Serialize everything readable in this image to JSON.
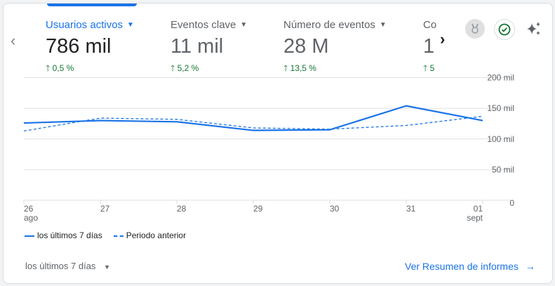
{
  "metrics": [
    {
      "label": "Usuarios activos",
      "value": "786 mil",
      "change": "0,5 %"
    },
    {
      "label": "Eventos clave",
      "value": "11 mil",
      "change": "5,2 %"
    },
    {
      "label": "Número de eventos",
      "value": "28 M",
      "change": "13,5 %"
    },
    {
      "label": "Co",
      "value": "1",
      "change": "5"
    }
  ],
  "icons": {
    "prev": "chevron-left-icon",
    "next": "chevron-right-icon",
    "badge": "medal-icon",
    "check": "check-circle-icon",
    "sparkle": "sparkle-icon"
  },
  "colors": {
    "accent": "#1a73e8",
    "positive": "#137333"
  },
  "chart_data": {
    "type": "line",
    "categories": [
      "26",
      "27",
      "28",
      "29",
      "30",
      "31",
      "01"
    ],
    "category_sublabels": {
      "26": "ago",
      "01": "sept"
    },
    "series": [
      {
        "name": "los últimos 7 días",
        "style": "solid",
        "values": [
          126000,
          130000,
          128000,
          114000,
          115000,
          154000,
          130000
        ]
      },
      {
        "name": "Periodo anterior",
        "style": "dashed",
        "values": [
          113000,
          134000,
          132000,
          118000,
          116000,
          122000,
          137000
        ]
      }
    ],
    "ylim": [
      0,
      200000
    ],
    "yticks": [
      "0",
      "50 mil",
      "100 mil",
      "150 mil",
      "200 mil"
    ],
    "grid": true,
    "legend": "bottom-left"
  },
  "footer": {
    "range": "los últimos 7 días",
    "link": "Ver Resumen de informes"
  }
}
